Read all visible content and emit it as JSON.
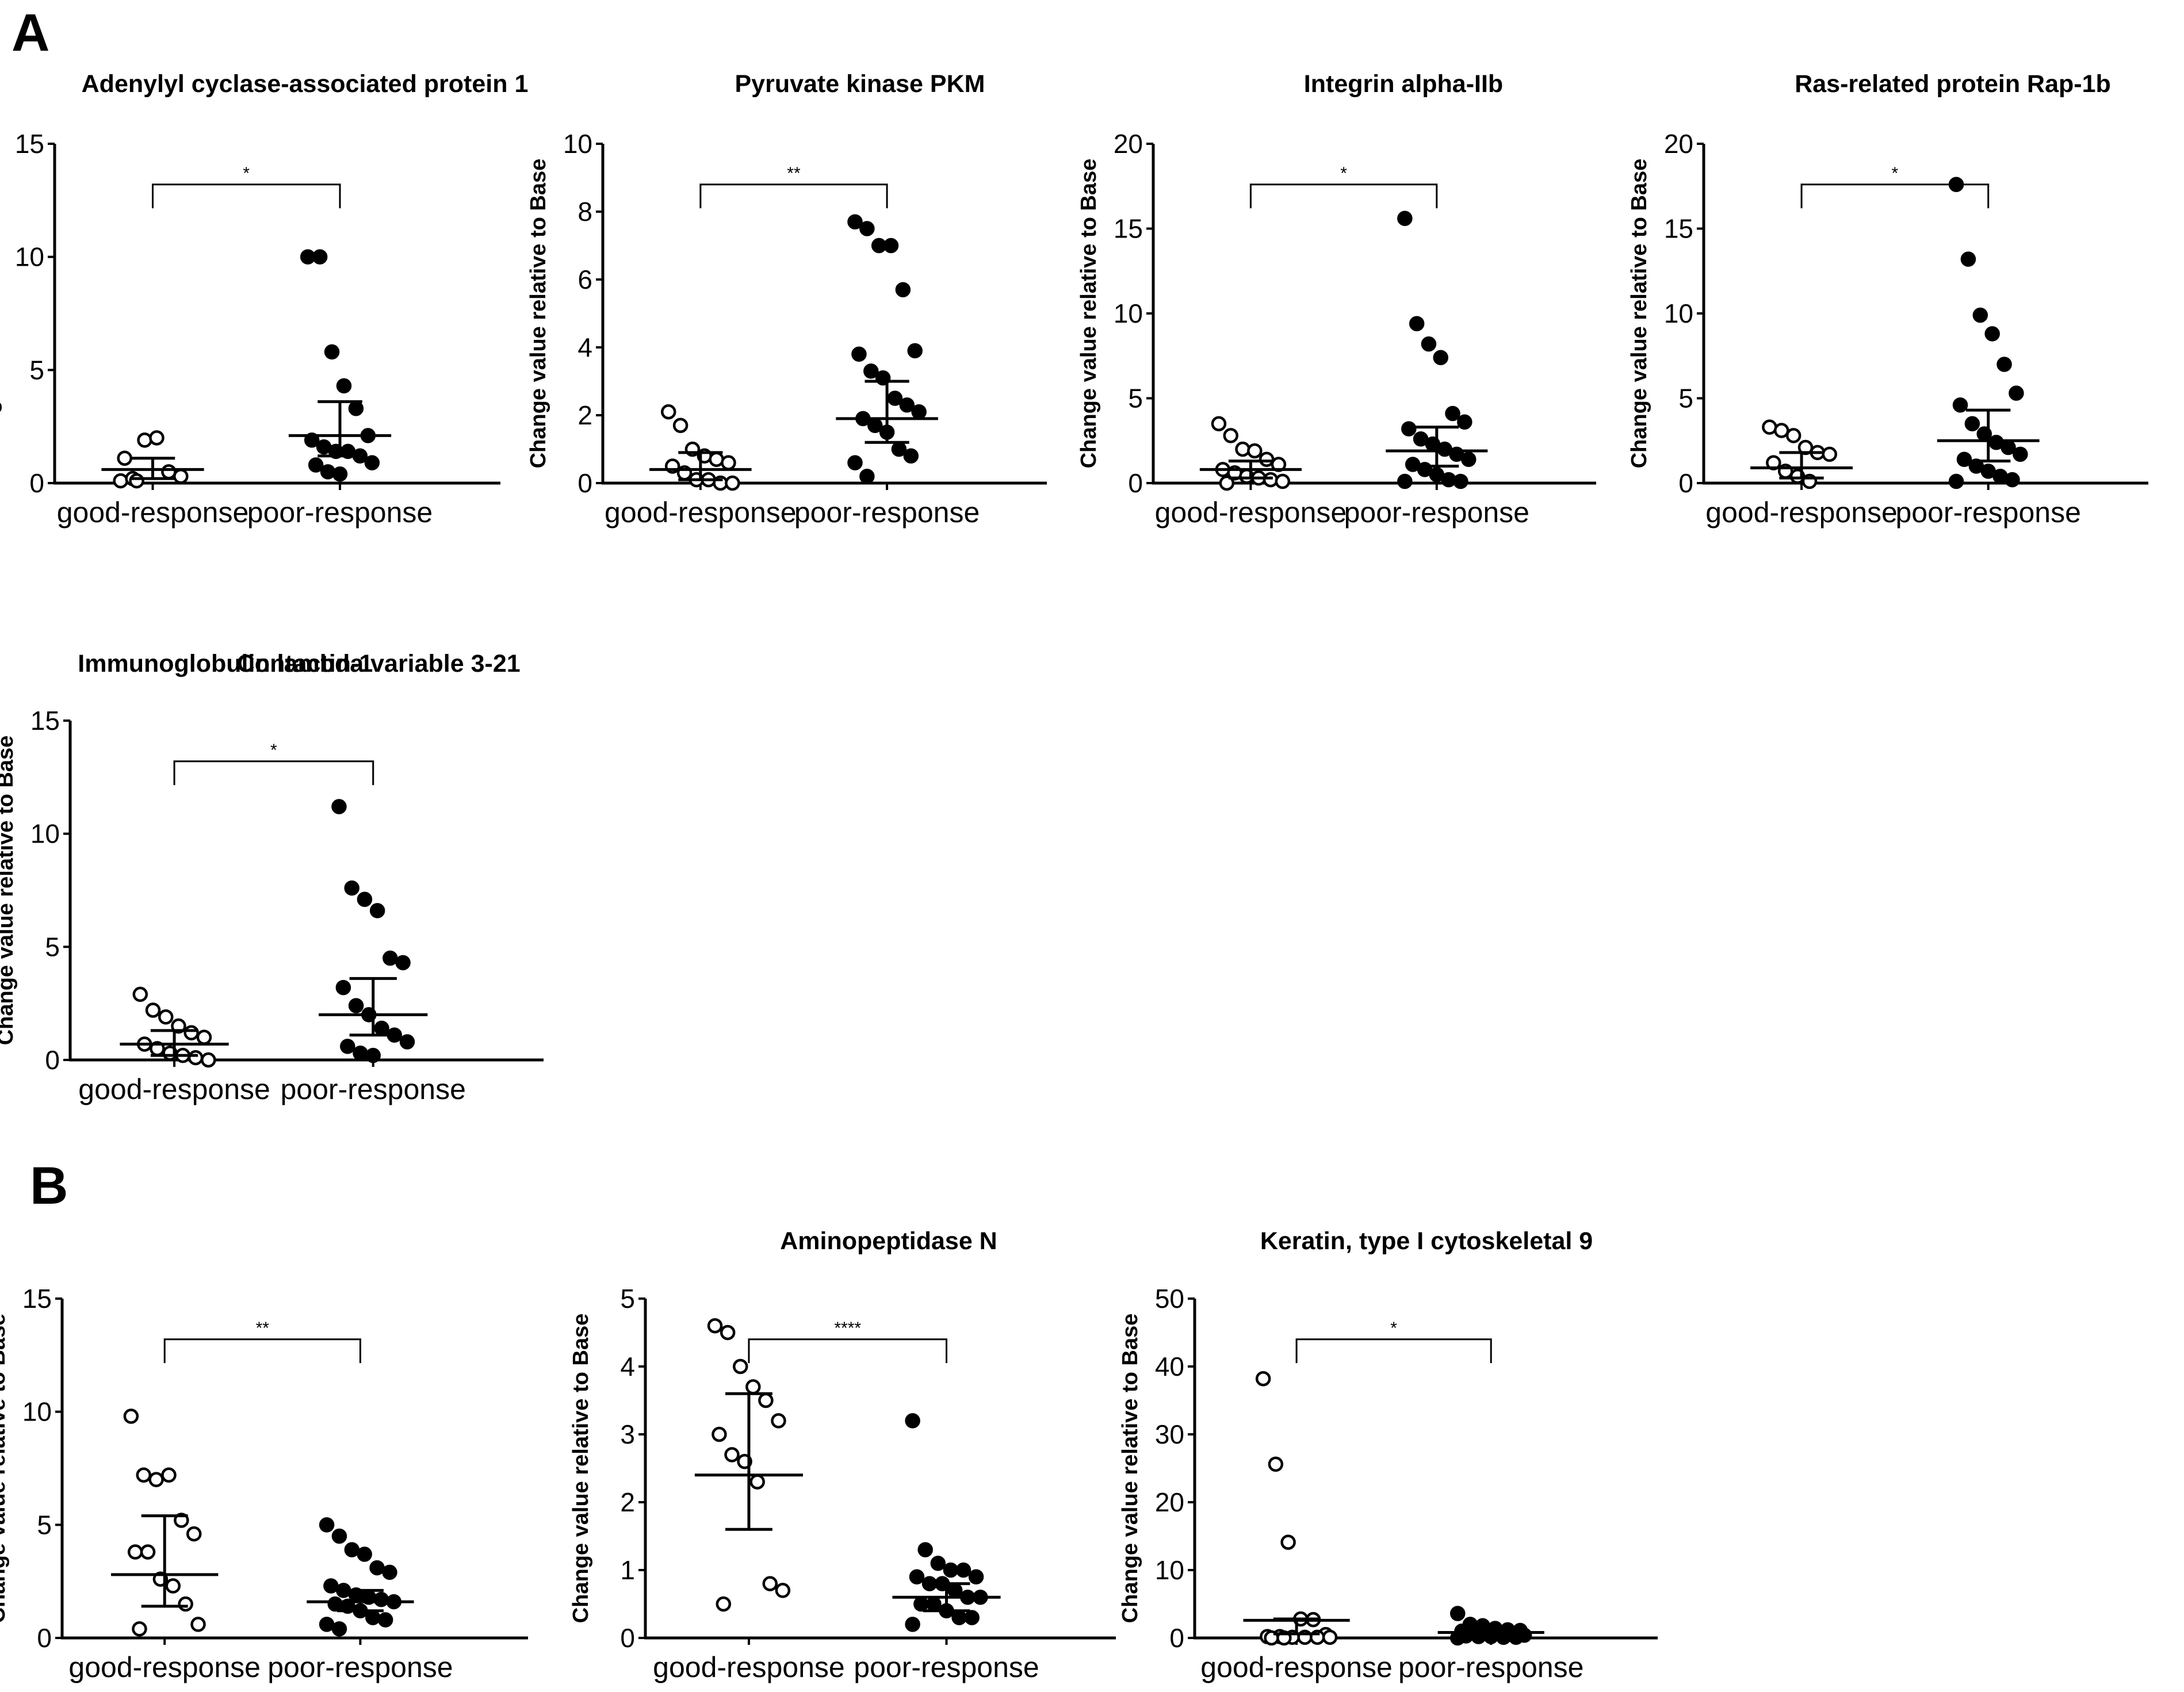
{
  "panel_labels": [
    "A",
    "B"
  ],
  "chart_data": [
    {
      "type": "scatter",
      "panel": "A",
      "title": "Adenylyl cyclase-associated protein 1",
      "ylabel": "Change value relative to Base",
      "categories": [
        "good-response",
        "poor-response"
      ],
      "ylim": [
        0,
        15
      ],
      "yticks": [
        0,
        5,
        10,
        15
      ],
      "significance": "*",
      "series": [
        {
          "name": "good-response",
          "marker": "open",
          "values": [
            0.1,
            0.2,
            1.9,
            2.0,
            0.5,
            0.3,
            1.1,
            0.1
          ],
          "mean": 0.6,
          "ci": [
            0.2,
            1.1
          ]
        },
        {
          "name": "poor-response",
          "marker": "filled",
          "values": [
            10.0,
            10.0,
            5.8,
            4.3,
            3.3,
            2.1,
            1.9,
            1.6,
            1.4,
            1.4,
            1.2,
            0.9,
            0.8,
            0.5,
            0.4
          ],
          "mean": 2.1,
          "ci": [
            1.2,
            3.6
          ]
        }
      ]
    },
    {
      "type": "scatter",
      "panel": "A",
      "title": "Pyruvate kinase PKM",
      "ylabel": "Change value relative to Base",
      "categories": [
        "good-response",
        "poor-response"
      ],
      "ylim": [
        0,
        10
      ],
      "yticks": [
        0,
        2,
        4,
        6,
        8,
        10
      ],
      "significance": "**",
      "series": [
        {
          "name": "good-response",
          "marker": "open",
          "values": [
            2.1,
            1.7,
            1.0,
            0.8,
            0.7,
            0.6,
            0.5,
            0.3,
            0.1,
            0.1,
            0.0,
            0.0
          ],
          "mean": 0.4,
          "ci": [
            0.1,
            0.9
          ]
        },
        {
          "name": "poor-response",
          "marker": "filled",
          "values": [
            7.7,
            7.5,
            7.0,
            7.0,
            5.7,
            3.9,
            3.8,
            3.3,
            3.1,
            2.5,
            2.3,
            2.1,
            1.9,
            1.7,
            1.5,
            1.0,
            0.8,
            0.6,
            0.2
          ],
          "mean": 1.9,
          "ci": [
            1.2,
            3.0
          ]
        }
      ]
    },
    {
      "type": "scatter",
      "panel": "A",
      "title": "Integrin alpha-IIb",
      "ylabel": "Change value relative to Base",
      "categories": [
        "good-response",
        "poor-response"
      ],
      "ylim": [
        0,
        20
      ],
      "yticks": [
        0,
        5,
        10,
        15,
        20
      ],
      "significance": "*",
      "series": [
        {
          "name": "good-response",
          "marker": "open",
          "values": [
            3.5,
            2.8,
            2.0,
            1.9,
            1.4,
            1.1,
            0.8,
            0.6,
            0.4,
            0.3,
            0.2,
            0.1,
            0.0
          ],
          "mean": 0.8,
          "ci": [
            0.3,
            1.3
          ]
        },
        {
          "name": "poor-response",
          "marker": "filled",
          "values": [
            15.6,
            9.4,
            8.2,
            7.4,
            4.1,
            3.6,
            3.2,
            2.6,
            2.3,
            2.0,
            1.7,
            1.4,
            1.1,
            0.8,
            0.5,
            0.2,
            0.1,
            0.1
          ],
          "mean": 1.9,
          "ci": [
            1.0,
            3.3
          ]
        }
      ]
    },
    {
      "type": "scatter",
      "panel": "A",
      "title": "Ras-related protein Rap-1b",
      "ylabel": "Change value relative to Base",
      "categories": [
        "good-response",
        "poor-response"
      ],
      "ylim": [
        0,
        20
      ],
      "yticks": [
        0,
        5,
        10,
        15,
        20
      ],
      "significance": "*",
      "series": [
        {
          "name": "good-response",
          "marker": "open",
          "values": [
            3.3,
            3.1,
            2.8,
            2.1,
            1.8,
            1.7,
            1.2,
            0.7,
            0.4,
            0.1
          ],
          "mean": 0.9,
          "ci": [
            0.3,
            1.8
          ]
        },
        {
          "name": "poor-response",
          "marker": "filled",
          "values": [
            17.6,
            13.2,
            9.9,
            8.8,
            7.0,
            5.3,
            4.6,
            3.5,
            2.9,
            2.4,
            2.1,
            1.7,
            1.4,
            1.0,
            0.7,
            0.4,
            0.2,
            0.1
          ],
          "mean": 2.5,
          "ci": [
            1.3,
            4.3
          ]
        }
      ]
    },
    {
      "type": "scatter",
      "panel": "A",
      "title": "Immunoglobulin lambda variable 3-21",
      "ylabel": "Change value relative to Base",
      "categories": [
        "good-response",
        "poor-response"
      ],
      "ylim": [
        0,
        15
      ],
      "yticks": [
        0,
        5,
        10,
        15
      ],
      "significance": "*",
      "series": [
        {
          "name": "good-response",
          "marker": "open",
          "values": [
            2.9,
            2.2,
            1.9,
            1.5,
            1.2,
            1.0,
            0.7,
            0.5,
            0.3,
            0.2,
            0.1,
            0.0
          ],
          "mean": 0.7,
          "ci": [
            0.2,
            1.3
          ]
        },
        {
          "name": "poor-response",
          "marker": "filled",
          "values": [
            11.2,
            7.6,
            7.1,
            6.6,
            4.5,
            4.3,
            3.2,
            2.4,
            2.0,
            1.4,
            1.1,
            0.8,
            0.6,
            0.3,
            0.2
          ],
          "mean": 2.0,
          "ci": [
            1.1,
            3.6
          ]
        }
      ]
    },
    {
      "type": "scatter",
      "panel": "B",
      "title": "Contactin-1",
      "ylabel": "Change value relative to Base",
      "categories": [
        "good-response",
        "poor-response"
      ],
      "ylim": [
        0,
        15
      ],
      "yticks": [
        0,
        5,
        10,
        15
      ],
      "significance": "**",
      "series": [
        {
          "name": "good-response",
          "marker": "open",
          "values": [
            9.8,
            7.2,
            7.0,
            7.2,
            5.2,
            4.6,
            3.8,
            3.8,
            2.6,
            2.3,
            1.5,
            0.6,
            0.4
          ],
          "mean": 2.8,
          "ci": [
            1.4,
            5.4
          ]
        },
        {
          "name": "poor-response",
          "marker": "filled",
          "values": [
            5.0,
            4.5,
            3.9,
            3.7,
            3.1,
            2.9,
            2.3,
            2.1,
            1.9,
            1.8,
            1.7,
            1.6,
            1.5,
            1.4,
            1.2,
            0.9,
            0.8,
            0.6,
            0.4
          ],
          "mean": 1.6,
          "ci": [
            1.2,
            2.1
          ]
        }
      ]
    },
    {
      "type": "scatter",
      "panel": "B",
      "title": "Aminopeptidase N",
      "ylabel": "Change value relative to Base",
      "categories": [
        "good-response",
        "poor-response"
      ],
      "ylim": [
        0,
        5
      ],
      "yticks": [
        0,
        1,
        2,
        3,
        4,
        5
      ],
      "significance": "****",
      "series": [
        {
          "name": "good-response",
          "marker": "open",
          "values": [
            4.6,
            4.5,
            4.0,
            3.7,
            3.5,
            3.2,
            3.0,
            2.7,
            2.6,
            2.3,
            0.8,
            0.7,
            0.5
          ],
          "mean": 2.4,
          "ci": [
            1.6,
            3.6
          ]
        },
        {
          "name": "poor-response",
          "marker": "filled",
          "values": [
            3.2,
            1.3,
            1.1,
            1.0,
            1.0,
            0.9,
            0.9,
            0.8,
            0.8,
            0.7,
            0.6,
            0.6,
            0.5,
            0.5,
            0.4,
            0.3,
            0.3,
            0.2
          ],
          "mean": 0.6,
          "ci": [
            0.4,
            0.8
          ]
        }
      ]
    },
    {
      "type": "scatter",
      "panel": "B",
      "title": "Keratin, type I cytoskeletal 9",
      "ylabel": "Change value relative to Base",
      "categories": [
        "good-response",
        "poor-response"
      ],
      "ylim": [
        0,
        50
      ],
      "yticks": [
        0,
        10,
        20,
        30,
        40,
        50
      ],
      "significance": "*",
      "series": [
        {
          "name": "good-response",
          "marker": "open",
          "values": [
            38.2,
            25.6,
            14.1,
            2.8,
            2.7,
            0.5,
            0.2,
            0.2,
            0.1,
            0.1,
            0.1,
            0.1,
            0.0,
            0.0
          ],
          "mean": 2.6,
          "ci": [
            0.6,
            2.8
          ]
        },
        {
          "name": "poor-response",
          "marker": "filled",
          "values": [
            3.6,
            2.0,
            1.8,
            1.4,
            1.2,
            1.1,
            1.0,
            0.9,
            0.8,
            0.6,
            0.5,
            0.4,
            0.3,
            0.2,
            0.2,
            0.1,
            0.1,
            0.0
          ],
          "mean": 0.8,
          "ci": [
            0.4,
            1.2
          ]
        }
      ]
    }
  ]
}
